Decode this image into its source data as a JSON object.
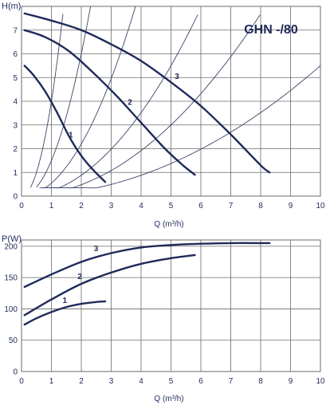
{
  "colors": {
    "curve": "#1f2a5a",
    "system_curve": "#3b4668",
    "grid": "#6a6a6a",
    "text": "#1f2a5a"
  },
  "chart_data": [
    {
      "type": "line",
      "title": "GHN -/80",
      "xlabel": "Q (m³/h)",
      "ylabel": "H(m)",
      "xlim": [
        0,
        10
      ],
      "ylim": [
        0,
        8
      ],
      "x_ticks": [
        "0",
        "1",
        "2",
        "3",
        "4",
        "5",
        "6",
        "7",
        "8",
        "9",
        "10"
      ],
      "y_ticks": [
        "0",
        "1",
        "2",
        "3",
        "4",
        "5",
        "6",
        "7"
      ],
      "grid": true,
      "series": [
        {
          "name": "1",
          "x": [
            0.1,
            0.4,
            0.8,
            1.2,
            1.6,
            2.0,
            2.4,
            2.8
          ],
          "y": [
            5.5,
            5.1,
            4.4,
            3.5,
            2.5,
            1.7,
            1.1,
            0.6
          ]
        },
        {
          "name": "2",
          "x": [
            0.1,
            0.8,
            1.6,
            2.4,
            3.2,
            4.0,
            4.8,
            5.4,
            5.8
          ],
          "y": [
            7.0,
            6.7,
            6.1,
            5.2,
            4.2,
            3.1,
            2.0,
            1.3,
            0.9
          ]
        },
        {
          "name": "3",
          "x": [
            0.1,
            1.0,
            2.0,
            3.0,
            4.0,
            5.0,
            6.0,
            7.0,
            8.0,
            8.3
          ],
          "y": [
            7.7,
            7.4,
            7.0,
            6.4,
            5.7,
            4.8,
            3.8,
            2.6,
            1.3,
            1.0
          ]
        }
      ],
      "system_curves": [
        {
          "k": 4.0,
          "x_start": 0.3
        },
        {
          "k": 1.5,
          "x_start": 0.5
        },
        {
          "k": 0.55,
          "x_start": 0.6
        },
        {
          "k": 0.22,
          "x_start": 0.7
        },
        {
          "k": 0.12,
          "x_start": 0.8
        },
        {
          "k": 0.055,
          "x_start": 0.9
        }
      ]
    },
    {
      "type": "line",
      "title": "",
      "xlabel": "Q (m³/h)",
      "ylabel": "P(W)",
      "xlim": [
        0,
        10
      ],
      "ylim": [
        0,
        210
      ],
      "x_ticks": [
        "0",
        "1",
        "2",
        "3",
        "4",
        "5",
        "6",
        "7",
        "8",
        "9",
        "10"
      ],
      "y_ticks": [
        "0",
        "50",
        "100",
        "150",
        "200"
      ],
      "y_tick_values": [
        0,
        50,
        100,
        150,
        200
      ],
      "grid": true,
      "series": [
        {
          "name": "1",
          "x": [
            0.1,
            0.5,
            1.0,
            1.5,
            2.0,
            2.5,
            2.8
          ],
          "y": [
            75,
            85,
            95,
            103,
            108,
            111,
            112
          ]
        },
        {
          "name": "2",
          "x": [
            0.1,
            1.0,
            2.0,
            3.0,
            4.0,
            5.0,
            5.8
          ],
          "y": [
            90,
            115,
            140,
            158,
            172,
            181,
            186
          ]
        },
        {
          "name": "3",
          "x": [
            0.1,
            1.0,
            2.0,
            3.0,
            4.0,
            5.0,
            6.0,
            7.0,
            8.0,
            8.3
          ],
          "y": [
            135,
            155,
            175,
            189,
            198,
            202,
            204,
            205,
            205,
            205
          ]
        }
      ]
    }
  ]
}
